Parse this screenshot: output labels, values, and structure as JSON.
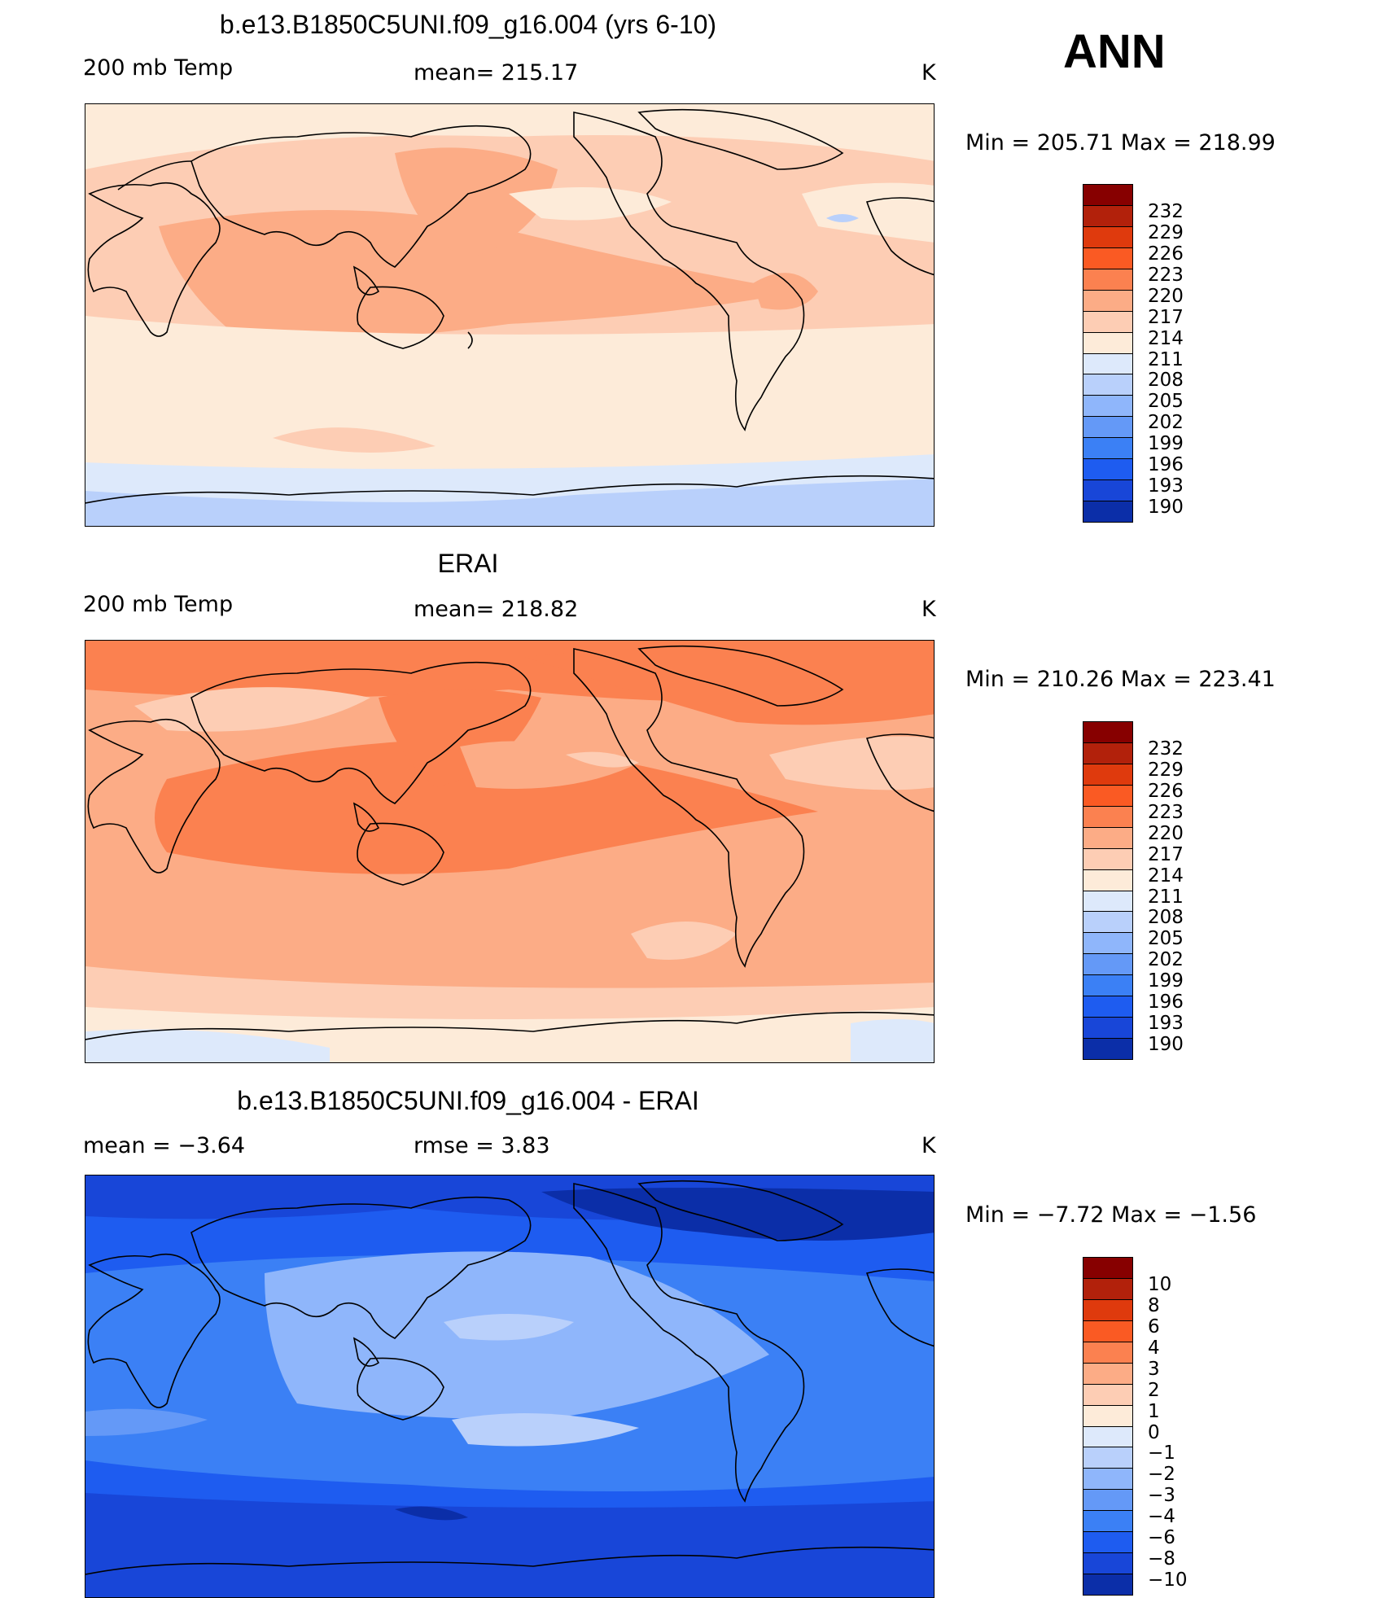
{
  "season": "ANN",
  "colors": {
    "coast": "#000000",
    "abs_scale": [
      "#00007f",
      "#0b2ea8",
      "#1846d8",
      "#1e5cf0",
      "#3b80f5",
      "#6499f7",
      "#8fb6fb",
      "#b9d0fb",
      "#dde9fb",
      "#fdebd9",
      "#fdcdb4",
      "#fcac86",
      "#fb8150",
      "#fa5a23",
      "#df3a0d",
      "#b2210b",
      "#870000"
    ],
    "diff_scale": [
      "#00007f",
      "#0b2ea8",
      "#1846d8",
      "#1e5cf0",
      "#3b80f5",
      "#6499f7",
      "#8fb6fb",
      "#b9d0fb",
      "#dde9fb",
      "#fdebd9",
      "#fdcdb4",
      "#fcac86",
      "#fb8150",
      "#fa5a23",
      "#df3a0d",
      "#b2210b",
      "#870000"
    ]
  },
  "panels": [
    {
      "id": "model",
      "title": "b.e13.B1850C5UNI.f09_g16.004 (yrs 6-10)",
      "left_label": "200 mb Temp",
      "center_label": "mean= 215.17",
      "units": "K",
      "minmax": "Min  =  205.71  Max  =  218.99",
      "colorbar_labels": [
        "232",
        "229",
        "226",
        "223",
        "220",
        "217",
        "214",
        "211",
        "208",
        "205",
        "202",
        "199",
        "196",
        "193",
        "190"
      ]
    },
    {
      "id": "obs",
      "title": "ERAI",
      "left_label": "200 mb Temp",
      "center_label": "mean= 218.82",
      "units": "K",
      "minmax": "Min  =  210.26  Max  =  223.41",
      "colorbar_labels": [
        "232",
        "229",
        "226",
        "223",
        "220",
        "217",
        "214",
        "211",
        "208",
        "205",
        "202",
        "199",
        "196",
        "193",
        "190"
      ]
    },
    {
      "id": "diff",
      "title": "b.e13.B1850C5UNI.f09_g16.004 - ERAI",
      "left_label": "mean  =    −3.64",
      "center_label": "rmse  =     3.83",
      "units": "K",
      "minmax": "Min  =    −7.72  Max  =    −1.56",
      "colorbar_labels": [
        "10",
        "8",
        "6",
        "4",
        "3",
        "2",
        "1",
        "0",
        "−1",
        "−2",
        "−3",
        "−4",
        "−6",
        "−8",
        "−10"
      ]
    }
  ]
}
